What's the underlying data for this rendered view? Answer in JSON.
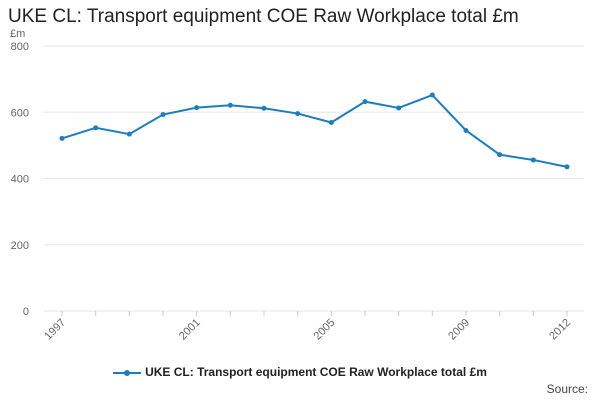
{
  "title": "UKE CL: Transport equipment COE Raw Workplace total £m",
  "source_label": "Source:",
  "colors": {
    "series": "#1a7ec0",
    "grid": "#e6e6e6",
    "axis_text": "#666666"
  },
  "chart_data": {
    "type": "line",
    "title": "UKE CL: Transport equipment COE Raw Workplace total £m",
    "ylabel": "£m",
    "xlabel": "",
    "ylim": [
      0,
      800
    ],
    "y_ticks": [
      0,
      200,
      400,
      600,
      800
    ],
    "x_ticks": [
      "1997",
      "2001",
      "2005",
      "2009",
      "2012"
    ],
    "x": [
      1997,
      1998,
      1999,
      2000,
      2001,
      2002,
      2003,
      2004,
      2005,
      2006,
      2007,
      2008,
      2009,
      2010,
      2011,
      2012
    ],
    "series": [
      {
        "name": "UKE CL: Transport equipment COE Raw Workplace total £m",
        "values": [
          521,
          553,
          534,
          593,
          614,
          621,
          612,
          596,
          569,
          632,
          613,
          652,
          545,
          472,
          456,
          435
        ]
      }
    ],
    "grid": true,
    "legend_position": "bottom"
  }
}
